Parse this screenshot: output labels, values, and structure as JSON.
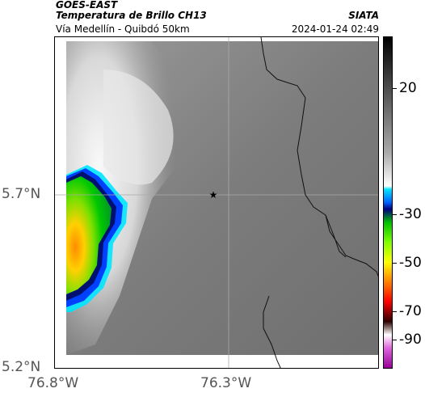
{
  "header": {
    "satellite": "GOES-EAST",
    "product": "Temperatura de Brillo CH13",
    "brand": "SIATA",
    "region": "Vía Medellín - Quibdó 50km",
    "timestamp": "2024-01-24 02:49"
  },
  "map": {
    "lat_labels": [
      "5.7°N",
      "5.2°N"
    ],
    "lon_labels": [
      "76.8°W",
      "76.3°W"
    ],
    "marker_symbol": "★"
  },
  "colorbar": {
    "tick_labels": [
      "20",
      "-30",
      "-50",
      "-70",
      "-90"
    ],
    "unit_scale_colors": [
      "#000000",
      "#ffffff",
      "#00e5ff",
      "#0000ff",
      "#00ff00",
      "#ffff00",
      "#ff6600",
      "#8b0000",
      "#ffffff",
      "#ff00ff"
    ]
  }
}
